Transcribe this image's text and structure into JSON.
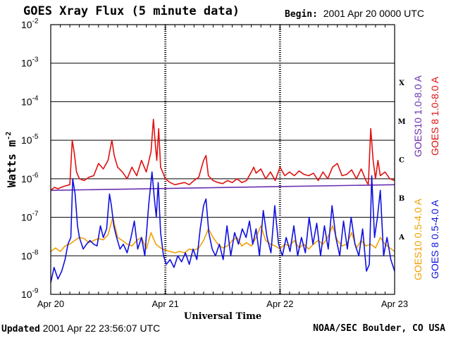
{
  "header": {
    "title": "GOES Xray Flux (5 minute data)",
    "begin_label": "Begin:",
    "begin_value": "2001 Apr 20 0000 UTC"
  },
  "footer": {
    "updated_label": "Updated",
    "updated_value": "2001 Apr 22 23:56:07 UTC",
    "credit": "NOAA/SEC Boulder, CO USA"
  },
  "chart_data": {
    "type": "line",
    "title": "GOES Xray Flux (5 minute data)",
    "xlabel": "Universal Time",
    "ylabel": "Watts m-2",
    "ylabel_base": "Watts m",
    "ylabel_exp": "-2",
    "y_scale": "log",
    "ylim": [
      1e-09,
      0.01
    ],
    "y_ticks": [
      {
        "base": "10",
        "exp": "-2"
      },
      {
        "base": "10",
        "exp": "-3"
      },
      {
        "base": "10",
        "exp": "-4"
      },
      {
        "base": "10",
        "exp": "-5"
      },
      {
        "base": "10",
        "exp": "-6"
      },
      {
        "base": "10",
        "exp": "-7"
      },
      {
        "base": "10",
        "exp": "-8"
      },
      {
        "base": "10",
        "exp": "-9"
      }
    ],
    "x_ticks": [
      "Apr 20",
      "Apr 21",
      "Apr 22",
      "Apr 23"
    ],
    "x_range_hours": [
      0,
      72
    ],
    "grid": true,
    "flare_classes": [
      "X",
      "M",
      "C",
      "B",
      "A"
    ],
    "colors": {
      "goes10_long": "#6a2fb0",
      "goes8_long": "#e01010",
      "goes10_short": "#f0a000",
      "goes8_short": "#1010e0"
    },
    "series": [
      {
        "name": "GOES10 1.0-8.0 A",
        "color": "#6a2fb0",
        "x": [
          0,
          72
        ],
        "values": [
          5e-07,
          7e-07
        ]
      },
      {
        "name": "GOES 8 1.0-8.0 A",
        "color": "#e01010",
        "x": [
          0,
          0.8,
          1.5,
          2.2,
          3,
          4,
          4.5,
          4.9,
          5.4,
          6,
          7,
          8,
          9,
          10,
          11,
          12,
          12.8,
          13.3,
          14,
          15,
          16,
          17,
          18,
          19,
          20,
          21,
          21.5,
          21.9,
          22.2,
          22.6,
          23,
          24,
          25,
          26,
          27,
          28,
          29,
          30,
          31,
          32,
          32.5,
          33,
          34,
          35,
          36,
          37,
          38,
          39,
          40,
          41,
          42,
          42.5,
          43,
          44,
          45,
          46,
          47,
          48,
          49,
          50,
          51,
          52,
          53,
          54,
          55,
          56,
          57,
          58,
          59,
          60,
          61,
          62,
          63,
          64,
          65,
          66,
          66.5,
          67,
          67.5,
          68,
          68.5,
          69,
          70,
          71,
          72
        ],
        "values": [
          5e-07,
          6e-07,
          5.5e-07,
          6e-07,
          6.5e-07,
          7e-07,
          1e-05,
          5e-06,
          1.5e-06,
          1e-06,
          9e-07,
          1.1e-06,
          1.2e-06,
          2.5e-06,
          1.8e-06,
          3e-06,
          1e-05,
          4e-06,
          2e-06,
          1.5e-06,
          1e-06,
          2e-06,
          1.2e-06,
          3e-06,
          1.5e-06,
          5e-06,
          3.5e-05,
          8e-06,
          3e-06,
          2e-05,
          2e-06,
          1e-06,
          8e-07,
          7e-07,
          7.5e-07,
          8e-07,
          7e-07,
          9e-07,
          1.1e-06,
          3e-06,
          4e-06,
          1.2e-06,
          9e-07,
          8e-07,
          7.5e-07,
          9e-07,
          8e-07,
          1e-06,
          8e-07,
          9e-07,
          1.5e-06,
          2e-06,
          1.4e-06,
          1.8e-06,
          1e-06,
          1.5e-06,
          9e-07,
          2e-06,
          1.2e-06,
          1.5e-06,
          1.2e-06,
          1.6e-06,
          1.3e-06,
          1.2e-06,
          1.4e-06,
          9e-07,
          1.5e-06,
          1e-06,
          2e-06,
          2.5e-06,
          1.2e-06,
          1.3e-06,
          1.7e-06,
          1e-06,
          1.8e-06,
          9e-07,
          7e-07,
          2e-05,
          3e-06,
          1e-06,
          3e-06,
          1.2e-06,
          1.5e-06,
          1e-06,
          9e-07
        ]
      },
      {
        "name": "GOES10 0.5-4.0 A",
        "color": "#f0a000",
        "x": [
          0,
          1,
          2,
          3,
          4,
          5,
          6,
          7,
          8,
          9,
          10,
          11,
          12,
          13,
          14,
          15,
          16,
          17,
          18,
          19,
          20,
          21,
          22,
          23,
          24,
          25,
          26,
          27,
          28,
          29,
          30,
          31,
          32,
          33,
          34,
          35,
          36,
          37,
          38,
          39,
          40,
          41,
          42,
          43,
          44,
          45,
          46,
          47,
          48,
          49,
          50,
          51,
          52,
          53,
          54,
          55,
          56,
          57,
          58,
          59,
          60,
          61,
          62,
          63,
          64,
          65,
          66,
          67,
          68,
          69,
          70,
          71,
          72
        ],
        "values": [
          1.3e-08,
          1.6e-08,
          1.3e-08,
          1.8e-08,
          2e-08,
          2.5e-08,
          3e-08,
          2.8e-08,
          2.2e-08,
          2.5e-08,
          2.8e-08,
          2.6e-08,
          3.5e-08,
          1e-07,
          3e-08,
          2.5e-08,
          2e-08,
          1.8e-08,
          2.5e-08,
          3e-08,
          1.5e-08,
          4e-08,
          2e-08,
          1.6e-08,
          1.4e-08,
          1.3e-08,
          1.2e-08,
          1.3e-08,
          1.2e-08,
          1.5e-08,
          1.4e-08,
          1.6e-08,
          2.5e-08,
          5e-08,
          3e-08,
          2e-08,
          1.6e-08,
          1.8e-08,
          2.5e-08,
          3e-08,
          1.8e-08,
          2.2e-08,
          1.8e-08,
          3e-08,
          6e-08,
          2.5e-08,
          2e-08,
          1.8e-08,
          1.5e-08,
          2e-08,
          1.8e-08,
          2.5e-08,
          1.6e-08,
          2e-08,
          1.5e-08,
          2e-08,
          2.5e-08,
          2e-08,
          3e-08,
          6e-08,
          2.5e-08,
          1.8e-08,
          2e-08,
          4e-08,
          1.6e-08,
          2.5e-08,
          1.8e-08,
          2e-08,
          1.6e-08,
          3e-08,
          2e-08,
          1.6e-08,
          1.3e-08
        ]
      },
      {
        "name": "GOES 8 0.5-4.0 A",
        "color": "#1010e0",
        "x": [
          0,
          0.7,
          1.5,
          2.3,
          3,
          3.6,
          4.2,
          4.6,
          5.1,
          5.6,
          6,
          6.8,
          7.5,
          8.2,
          9,
          9.7,
          10.4,
          11,
          11.7,
          12.3,
          12.7,
          13.2,
          13.8,
          14.5,
          15.2,
          16,
          16.8,
          17.5,
          18.2,
          19,
          19.7,
          20.5,
          21.2,
          21.7,
          22.1,
          22.5,
          23,
          23.6,
          24.2,
          25,
          25.8,
          26.6,
          27.4,
          28.2,
          29,
          29.8,
          30.6,
          31.3,
          32,
          32.5,
          33.1,
          33.8,
          34.5,
          35.3,
          36.1,
          36.9,
          37.7,
          38.5,
          39.3,
          40.1,
          40.9,
          41.6,
          42.3,
          43,
          43.7,
          44.5,
          45.3,
          46.1,
          46.9,
          47.7,
          48.5,
          49.3,
          50.1,
          50.9,
          51.7,
          52.5,
          53.3,
          54.1,
          54.9,
          55.7,
          56.5,
          57.3,
          58.1,
          58.9,
          59.7,
          60.5,
          61.3,
          62.1,
          62.9,
          63.7,
          64.5,
          65.3,
          66.1,
          66.7,
          67.2,
          67.8,
          68.4,
          69,
          69.7,
          70.4,
          71.2,
          72
        ],
        "values": [
          2e-09,
          5e-09,
          2.5e-09,
          4e-09,
          8e-09,
          2e-08,
          3e-08,
          1e-06,
          4e-07,
          6e-08,
          3e-08,
          1.5e-08,
          2e-08,
          2.5e-08,
          2e-08,
          1.8e-08,
          6e-08,
          3e-08,
          5e-08,
          4e-07,
          2e-07,
          6e-08,
          3e-08,
          1.5e-08,
          2e-08,
          1.2e-08,
          3e-08,
          8e-08,
          1.5e-08,
          3e-08,
          1e-08,
          2e-07,
          1.5e-06,
          3e-07,
          1e-07,
          8e-07,
          4e-08,
          1e-08,
          6e-09,
          8e-09,
          5e-09,
          1e-08,
          7e-09,
          1.2e-08,
          6e-09,
          1.5e-08,
          8e-09,
          5e-08,
          2e-07,
          3e-07,
          4e-08,
          1.5e-08,
          1e-08,
          2e-08,
          8e-09,
          6e-08,
          1e-08,
          4e-08,
          2e-08,
          5e-08,
          3e-08,
          8e-08,
          2e-08,
          5e-08,
          1e-08,
          1.5e-07,
          3e-08,
          1.2e-08,
          2e-07,
          2e-08,
          1e-08,
          3e-08,
          1.3e-08,
          6e-08,
          1e-08,
          3e-08,
          1.2e-08,
          1e-07,
          2e-08,
          7e-08,
          1e-08,
          6e-08,
          1.5e-08,
          2e-07,
          3e-08,
          1e-08,
          8e-08,
          1.5e-08,
          1e-07,
          2e-08,
          1e-08,
          5e-08,
          4e-09,
          6e-09,
          1.2e-06,
          3e-08,
          1e-07,
          5e-07,
          1e-08,
          3e-08,
          8e-09,
          4e-09
        ]
      }
    ]
  }
}
